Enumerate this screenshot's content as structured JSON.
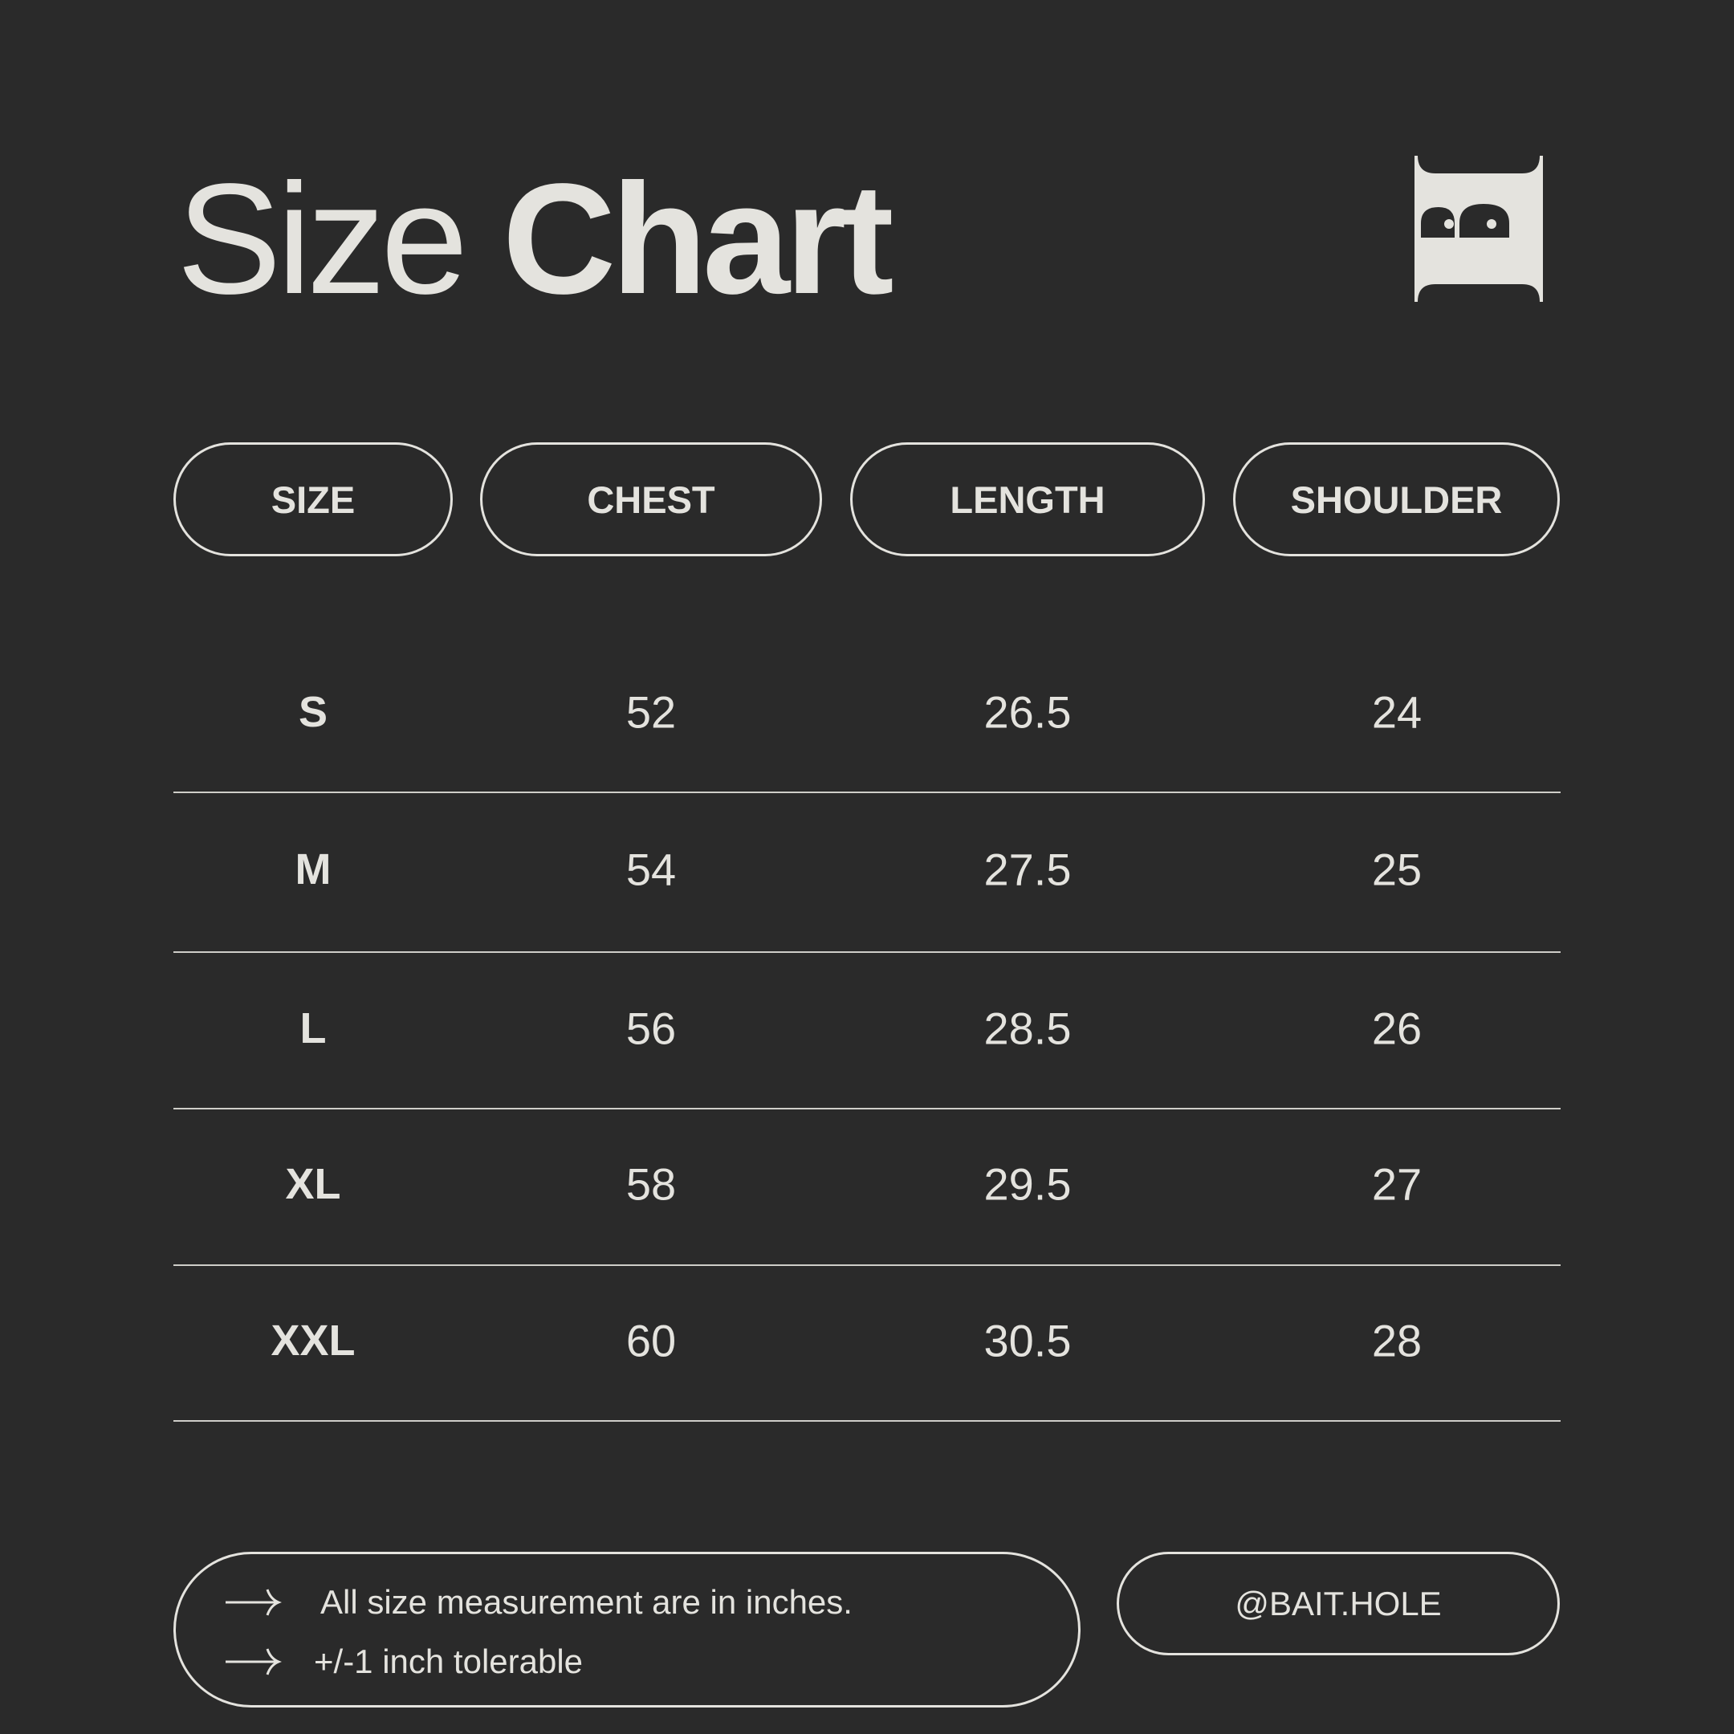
{
  "title": {
    "light": "Size",
    "bold": "Chart"
  },
  "logo": {
    "icon": "robot-face-logo-icon"
  },
  "colors": {
    "background": "#2a2a2a",
    "foreground": "#e4e3de"
  },
  "table": {
    "headers": [
      "SIZE",
      "CHEST",
      "LENGTH",
      "SHOULDER"
    ],
    "rows": [
      [
        "S",
        "52",
        "26.5",
        "24"
      ],
      [
        "M",
        "54",
        "27.5",
        "25"
      ],
      [
        "L",
        "56",
        "28.5",
        "26"
      ],
      [
        "XL",
        "58",
        "29.5",
        "27"
      ],
      [
        "XXL",
        "60",
        "30.5",
        "28"
      ]
    ]
  },
  "notes": [
    "All size measurement are in inches.",
    "+/-1 inch tolerable"
  ],
  "handle": "@BAIT.HOLE"
}
